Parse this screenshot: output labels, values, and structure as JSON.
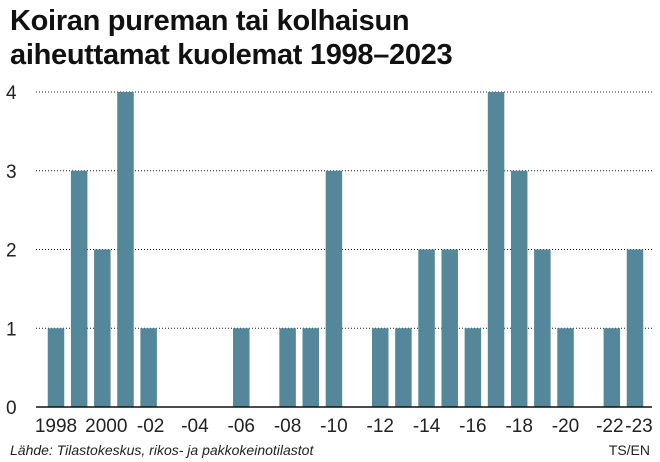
{
  "title_lines": [
    "Koiran pureman tai kolhaisun",
    "aiheuttamat kuolemat 1998–2023"
  ],
  "source": "Lähde: Tilastokeskus, rikos- ja pakkokeinotilastot",
  "credit": "TS/EN",
  "colors": {
    "bar": "#55879B",
    "grid": "#1a1a1a",
    "axis": "#111111"
  },
  "chart_data": {
    "type": "bar",
    "title": "Koiran pureman tai kolhaisun aiheuttamat kuolemat 1998–2023",
    "xlabel": "",
    "ylabel": "",
    "ylim": [
      0,
      4
    ],
    "yticks": [
      "0",
      "1",
      "2",
      "3",
      "4"
    ],
    "grid": "horizontal dashed",
    "categories": [
      "1998",
      "1999",
      "2000",
      "2001",
      "2002",
      "2003",
      "2004",
      "2005",
      "2006",
      "2007",
      "2008",
      "2009",
      "2010",
      "2011",
      "2012",
      "2013",
      "2014",
      "2015",
      "2016",
      "2017",
      "2018",
      "2019",
      "2020",
      "2021",
      "2022",
      "2023"
    ],
    "values": [
      1,
      3,
      2,
      4,
      1,
      0,
      0,
      0,
      1,
      0,
      1,
      1,
      3,
      0,
      1,
      1,
      2,
      2,
      1,
      4,
      3,
      2,
      1,
      0,
      1,
      2
    ],
    "xtick_labels": [
      {
        "category": "1998",
        "label": "1998"
      },
      {
        "category": "2000",
        "label": "2000"
      },
      {
        "category": "2002",
        "label": "-02"
      },
      {
        "category": "2004",
        "label": "-04"
      },
      {
        "category": "2006",
        "label": "-06"
      },
      {
        "category": "2008",
        "label": "-08"
      },
      {
        "category": "2010",
        "label": "-10"
      },
      {
        "category": "2012",
        "label": "-12"
      },
      {
        "category": "2014",
        "label": "-14"
      },
      {
        "category": "2016",
        "label": "-16"
      },
      {
        "category": "2018",
        "label": "-18"
      },
      {
        "category": "2020",
        "label": "-20"
      },
      {
        "category": "2022",
        "label": "-22"
      },
      {
        "category": "2023",
        "label": "-23"
      }
    ]
  }
}
